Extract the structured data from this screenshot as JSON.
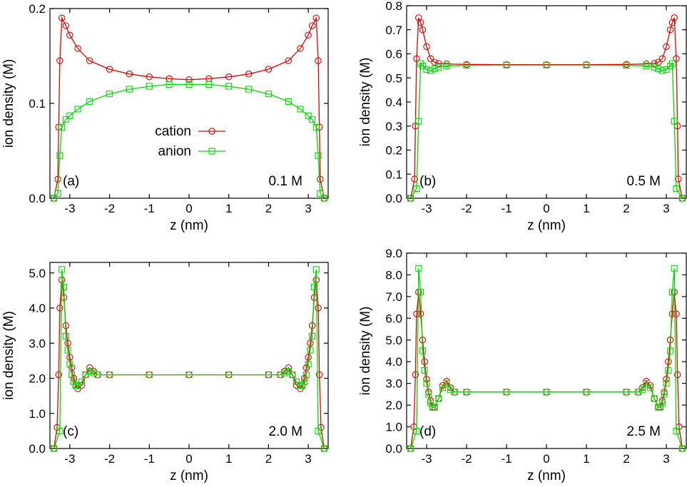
{
  "chart_data": [
    {
      "type": "line",
      "panel_label": "(a)",
      "concentration": "0.1 M",
      "xlabel": "z (nm)",
      "ylabel": "ion density (M)",
      "xlim": [
        -3.5,
        3.5
      ],
      "ylim": [
        0,
        0.2
      ],
      "xticks": [
        -3,
        -2,
        -1,
        0,
        1,
        2,
        3
      ],
      "xtick_labels": [
        "-3",
        "-2",
        "-1",
        "0",
        "1",
        "2",
        "3"
      ],
      "yticks": [
        0,
        0.1,
        0.2
      ],
      "ytick_labels": [
        "0.0",
        "0.1",
        "0.2"
      ],
      "legend": [
        {
          "name": "cation",
          "marker": "circle"
        },
        {
          "name": "anion",
          "marker": "square"
        }
      ],
      "series": [
        {
          "name": "cation",
          "color": "#e00000",
          "marker": "circle",
          "x": [
            -3.4,
            -3.3,
            -3.28,
            -3.25,
            -3.2,
            -3.1,
            -3.0,
            -2.8,
            -2.5,
            -2.0,
            -1.5,
            -1.0,
            -0.5,
            0,
            0.5,
            1.0,
            1.5,
            2.0,
            2.5,
            2.8,
            3.0,
            3.1,
            3.2,
            3.25,
            3.28,
            3.3,
            3.4
          ],
          "values": [
            0,
            0.02,
            0.075,
            0.145,
            0.19,
            0.182,
            0.172,
            0.158,
            0.145,
            0.136,
            0.131,
            0.128,
            0.126,
            0.125,
            0.126,
            0.128,
            0.131,
            0.136,
            0.145,
            0.158,
            0.172,
            0.182,
            0.19,
            0.145,
            0.075,
            0.02,
            0
          ]
        },
        {
          "name": "anion",
          "color": "#00d800",
          "marker": "square",
          "x": [
            -3.4,
            -3.3,
            -3.25,
            -3.2,
            -3.1,
            -3.0,
            -2.8,
            -2.5,
            -2.0,
            -1.5,
            -1.0,
            -0.5,
            0,
            0.5,
            1.0,
            1.5,
            2.0,
            2.5,
            2.8,
            3.0,
            3.1,
            3.2,
            3.25,
            3.3,
            3.4
          ],
          "values": [
            0,
            0.005,
            0.045,
            0.075,
            0.083,
            0.087,
            0.094,
            0.102,
            0.11,
            0.115,
            0.118,
            0.12,
            0.12,
            0.12,
            0.118,
            0.115,
            0.11,
            0.102,
            0.094,
            0.087,
            0.083,
            0.075,
            0.045,
            0.005,
            0
          ]
        }
      ]
    },
    {
      "type": "line",
      "panel_label": "(b)",
      "concentration": "0.5 M",
      "xlabel": "z (nm)",
      "ylabel": "ion density (M)",
      "xlim": [
        -3.5,
        3.5
      ],
      "ylim": [
        0,
        0.8
      ],
      "xticks": [
        -3,
        -2,
        -1,
        0,
        1,
        2,
        3
      ],
      "xtick_labels": [
        "-3",
        "-2",
        "-1",
        "0",
        "1",
        "2",
        "3"
      ],
      "yticks": [
        0,
        0.1,
        0.2,
        0.3,
        0.4,
        0.5,
        0.6,
        0.7,
        0.8
      ],
      "ytick_labels": [
        "0.0",
        "0.1",
        "0.2",
        "0.3",
        "0.4",
        "0.5",
        "0.6",
        "0.7",
        "0.8"
      ],
      "series": [
        {
          "name": "cation",
          "color": "#e00000",
          "marker": "circle",
          "x": [
            -3.4,
            -3.3,
            -3.28,
            -3.25,
            -3.2,
            -3.15,
            -3.1,
            -3.0,
            -2.9,
            -2.8,
            -2.7,
            -2.5,
            -2.0,
            -1.0,
            0,
            1.0,
            2.0,
            2.5,
            2.7,
            2.8,
            2.9,
            3.0,
            3.1,
            3.15,
            3.2,
            3.25,
            3.28,
            3.3,
            3.4
          ],
          "values": [
            0,
            0.08,
            0.3,
            0.58,
            0.75,
            0.73,
            0.7,
            0.63,
            0.58,
            0.565,
            0.56,
            0.558,
            0.556,
            0.555,
            0.555,
            0.555,
            0.556,
            0.558,
            0.56,
            0.565,
            0.58,
            0.63,
            0.7,
            0.73,
            0.75,
            0.58,
            0.3,
            0.08,
            0
          ]
        },
        {
          "name": "anion",
          "color": "#00d800",
          "marker": "square",
          "x": [
            -3.4,
            -3.25,
            -3.2,
            -3.15,
            -3.1,
            -3.0,
            -2.9,
            -2.8,
            -2.7,
            -2.5,
            -2.0,
            -1.0,
            0,
            1.0,
            2.0,
            2.5,
            2.7,
            2.8,
            2.9,
            3.0,
            3.1,
            3.15,
            3.2,
            3.25,
            3.4
          ],
          "values": [
            0,
            0.04,
            0.32,
            0.56,
            0.55,
            0.535,
            0.53,
            0.538,
            0.545,
            0.55,
            0.552,
            0.553,
            0.553,
            0.553,
            0.552,
            0.55,
            0.545,
            0.538,
            0.53,
            0.535,
            0.55,
            0.56,
            0.32,
            0.04,
            0
          ]
        }
      ]
    },
    {
      "type": "line",
      "panel_label": "(c)",
      "concentration": "2.0 M",
      "xlabel": "z (nm)",
      "ylabel": "ion density (M)",
      "xlim": [
        -3.5,
        3.5
      ],
      "ylim": [
        0,
        5.3
      ],
      "xticks": [
        -3,
        -2,
        -1,
        0,
        1,
        2,
        3
      ],
      "xtick_labels": [
        "-3",
        "-2",
        "-1",
        "0",
        "1",
        "2",
        "3"
      ],
      "yticks": [
        0,
        1,
        2,
        3,
        4,
        5
      ],
      "ytick_labels": [
        "0.0",
        "1.0",
        "2.0",
        "3.0",
        "4.0",
        "5.0"
      ],
      "series": [
        {
          "name": "cation",
          "color": "#e00000",
          "marker": "circle",
          "x": [
            -3.4,
            -3.32,
            -3.28,
            -3.25,
            -3.2,
            -3.15,
            -3.1,
            -3.05,
            -3.0,
            -2.95,
            -2.9,
            -2.85,
            -2.8,
            -2.7,
            -2.6,
            -2.5,
            -2.4,
            -2.3,
            -2.0,
            -1.0,
            0,
            1.0,
            2.0,
            2.3,
            2.4,
            2.5,
            2.6,
            2.7,
            2.8,
            2.85,
            2.9,
            2.95,
            3.0,
            3.05,
            3.1,
            3.15,
            3.2,
            3.25,
            3.28,
            3.32,
            3.4
          ],
          "values": [
            0,
            0.6,
            2.1,
            4.0,
            4.8,
            4.3,
            3.5,
            3.0,
            2.6,
            2.3,
            2.0,
            1.8,
            1.7,
            1.8,
            2.1,
            2.3,
            2.2,
            2.1,
            2.1,
            2.1,
            2.1,
            2.1,
            2.1,
            2.1,
            2.2,
            2.3,
            2.1,
            1.8,
            1.7,
            1.8,
            2.0,
            2.3,
            2.6,
            3.0,
            3.5,
            4.3,
            4.8,
            4.0,
            2.1,
            0.6,
            0
          ]
        },
        {
          "name": "anion",
          "color": "#00d800",
          "marker": "square",
          "x": [
            -3.4,
            -3.25,
            -3.2,
            -3.15,
            -3.1,
            -3.05,
            -3.0,
            -2.95,
            -2.9,
            -2.85,
            -2.8,
            -2.7,
            -2.6,
            -2.5,
            -2.4,
            -2.3,
            -2.0,
            -1.0,
            0,
            1.0,
            2.0,
            2.3,
            2.4,
            2.5,
            2.6,
            2.7,
            2.8,
            2.85,
            2.9,
            2.95,
            3.0,
            3.05,
            3.1,
            3.15,
            3.2,
            3.25,
            3.4
          ],
          "values": [
            0,
            0.5,
            5.1,
            4.6,
            3.2,
            2.8,
            2.4,
            2.1,
            1.9,
            1.8,
            1.8,
            1.9,
            2.1,
            2.2,
            2.15,
            2.1,
            2.1,
            2.1,
            2.1,
            2.1,
            2.1,
            2.1,
            2.15,
            2.2,
            2.1,
            1.9,
            1.8,
            1.8,
            1.9,
            2.1,
            2.4,
            2.8,
            3.2,
            4.6,
            5.1,
            0.5,
            0
          ]
        }
      ]
    },
    {
      "type": "line",
      "panel_label": "(d)",
      "concentration": "2.5 M",
      "xlabel": "z (nm)",
      "ylabel": "ion density (M)",
      "xlim": [
        -3.5,
        3.5
      ],
      "ylim": [
        0,
        9.0
      ],
      "xticks": [
        -3,
        -2,
        -1,
        0,
        1,
        2,
        3
      ],
      "xtick_labels": [
        "-3",
        "-2",
        "-1",
        "0",
        "1",
        "2",
        "3"
      ],
      "yticks": [
        0,
        1,
        2,
        3,
        4,
        5,
        6,
        7,
        8,
        9
      ],
      "ytick_labels": [
        "0.0",
        "1.0",
        "2.0",
        "3.0",
        "4.0",
        "5.0",
        "6.0",
        "7.0",
        "8.0",
        "9.0"
      ],
      "series": [
        {
          "name": "cation",
          "color": "#e00000",
          "marker": "circle",
          "x": [
            -3.4,
            -3.32,
            -3.28,
            -3.25,
            -3.2,
            -3.15,
            -3.1,
            -3.05,
            -3.0,
            -2.95,
            -2.9,
            -2.85,
            -2.8,
            -2.7,
            -2.6,
            -2.5,
            -2.4,
            -2.3,
            -2.0,
            -1.0,
            0,
            1.0,
            2.0,
            2.3,
            2.4,
            2.5,
            2.6,
            2.7,
            2.8,
            2.85,
            2.9,
            2.95,
            3.0,
            3.05,
            3.1,
            3.15,
            3.2,
            3.25,
            3.28,
            3.32,
            3.4
          ],
          "values": [
            0,
            1.0,
            3.4,
            6.2,
            7.2,
            6.2,
            5.0,
            4.0,
            3.2,
            2.6,
            2.2,
            1.9,
            1.9,
            2.3,
            2.9,
            3.1,
            2.8,
            2.6,
            2.6,
            2.6,
            2.6,
            2.6,
            2.6,
            2.6,
            2.8,
            3.1,
            2.9,
            2.3,
            1.9,
            1.9,
            2.2,
            2.6,
            3.2,
            4.0,
            5.0,
            6.2,
            7.2,
            6.2,
            3.4,
            1.0,
            0
          ]
        },
        {
          "name": "anion",
          "color": "#00d800",
          "marker": "square",
          "x": [
            -3.4,
            -3.25,
            -3.2,
            -3.15,
            -3.1,
            -3.05,
            -3.0,
            -2.95,
            -2.9,
            -2.85,
            -2.8,
            -2.7,
            -2.6,
            -2.5,
            -2.4,
            -2.3,
            -2.0,
            -1.0,
            0,
            1.0,
            2.0,
            2.3,
            2.4,
            2.5,
            2.6,
            2.7,
            2.8,
            2.85,
            2.9,
            2.95,
            3.0,
            3.05,
            3.1,
            3.15,
            3.2,
            3.25,
            3.4
          ],
          "values": [
            0,
            0.8,
            8.3,
            7.2,
            4.5,
            3.6,
            3.0,
            2.5,
            2.1,
            1.9,
            1.9,
            2.3,
            2.8,
            3.0,
            2.7,
            2.6,
            2.6,
            2.6,
            2.6,
            2.6,
            2.6,
            2.6,
            2.7,
            3.0,
            2.8,
            2.3,
            1.9,
            1.9,
            2.1,
            2.5,
            3.0,
            3.6,
            4.5,
            7.2,
            8.3,
            0.8,
            0
          ]
        }
      ]
    }
  ]
}
